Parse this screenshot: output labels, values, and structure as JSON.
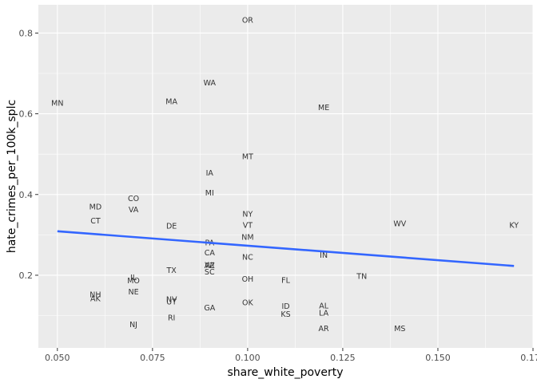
{
  "chart_data": {
    "type": "scatter",
    "xlabel": "share_white_poverty",
    "ylabel": "hate_crimes_per_100k_splc",
    "xlim": [
      0.045,
      0.175
    ],
    "ylim": [
      0.02,
      0.87
    ],
    "x_ticks": [
      0.05,
      0.075,
      0.1,
      0.125,
      0.15,
      0.175
    ],
    "x_tick_labels": [
      "0.050",
      "0.075",
      "0.100",
      "0.125",
      "0.150",
      "0.175"
    ],
    "y_ticks": [
      0.2,
      0.4,
      0.6,
      0.8
    ],
    "y_tick_labels": [
      "0.2",
      "0.4",
      "0.6",
      "0.8"
    ],
    "grid": true,
    "panel_background": "#EBEBEB",
    "grid_color": "#FFFFFF",
    "trend_color": "#3366FF",
    "trend_line": {
      "x": [
        0.05,
        0.17
      ],
      "y": [
        0.309,
        0.223
      ]
    },
    "points": [
      {
        "label": "OR",
        "x": 0.1,
        "y": 0.832
      },
      {
        "label": "WA",
        "x": 0.09,
        "y": 0.677
      },
      {
        "label": "MN",
        "x": 0.05,
        "y": 0.627
      },
      {
        "label": "MA",
        "x": 0.08,
        "y": 0.631
      },
      {
        "label": "ME",
        "x": 0.12,
        "y": 0.616
      },
      {
        "label": "MT",
        "x": 0.1,
        "y": 0.494
      },
      {
        "label": "IA",
        "x": 0.09,
        "y": 0.454
      },
      {
        "label": "MI",
        "x": 0.09,
        "y": 0.404
      },
      {
        "label": "CO",
        "x": 0.07,
        "y": 0.391
      },
      {
        "label": "MD",
        "x": 0.06,
        "y": 0.37
      },
      {
        "label": "VA",
        "x": 0.07,
        "y": 0.363
      },
      {
        "label": "NY",
        "x": 0.1,
        "y": 0.352
      },
      {
        "label": "CT",
        "x": 0.06,
        "y": 0.335
      },
      {
        "label": "WV",
        "x": 0.14,
        "y": 0.328
      },
      {
        "label": "KY",
        "x": 0.17,
        "y": 0.324
      },
      {
        "label": "VT",
        "x": 0.1,
        "y": 0.324
      },
      {
        "label": "DE",
        "x": 0.08,
        "y": 0.322
      },
      {
        "label": "NM",
        "x": 0.1,
        "y": 0.295
      },
      {
        "label": "PA",
        "x": 0.09,
        "y": 0.281
      },
      {
        "label": "CA",
        "x": 0.09,
        "y": 0.256
      },
      {
        "label": "IN",
        "x": 0.12,
        "y": 0.25
      },
      {
        "label": "NC",
        "x": 0.1,
        "y": 0.245
      },
      {
        "label": "WI",
        "x": 0.09,
        "y": 0.226
      },
      {
        "label": "AZ",
        "x": 0.09,
        "y": 0.225
      },
      {
        "label": "TX",
        "x": 0.08,
        "y": 0.213
      },
      {
        "label": "SC",
        "x": 0.09,
        "y": 0.209
      },
      {
        "label": "TN",
        "x": 0.13,
        "y": 0.198
      },
      {
        "label": "IL",
        "x": 0.07,
        "y": 0.195
      },
      {
        "label": "OH",
        "x": 0.1,
        "y": 0.191
      },
      {
        "label": "MO",
        "x": 0.07,
        "y": 0.187
      },
      {
        "label": "FL",
        "x": 0.11,
        "y": 0.188
      },
      {
        "label": "NE",
        "x": 0.07,
        "y": 0.159
      },
      {
        "label": "NH",
        "x": 0.06,
        "y": 0.152
      },
      {
        "label": "AK",
        "x": 0.06,
        "y": 0.143
      },
      {
        "label": "NV",
        "x": 0.08,
        "y": 0.141
      },
      {
        "label": "UT",
        "x": 0.08,
        "y": 0.135
      },
      {
        "label": "OK",
        "x": 0.1,
        "y": 0.133
      },
      {
        "label": "AL",
        "x": 0.12,
        "y": 0.125
      },
      {
        "label": "ID",
        "x": 0.11,
        "y": 0.124
      },
      {
        "label": "GA",
        "x": 0.09,
        "y": 0.12
      },
      {
        "label": "LA",
        "x": 0.12,
        "y": 0.107
      },
      {
        "label": "KS",
        "x": 0.11,
        "y": 0.104
      },
      {
        "label": "RI",
        "x": 0.08,
        "y": 0.095
      },
      {
        "label": "NJ",
        "x": 0.07,
        "y": 0.078
      },
      {
        "label": "AR",
        "x": 0.12,
        "y": 0.068
      },
      {
        "label": "MS",
        "x": 0.14,
        "y": 0.068
      }
    ]
  }
}
